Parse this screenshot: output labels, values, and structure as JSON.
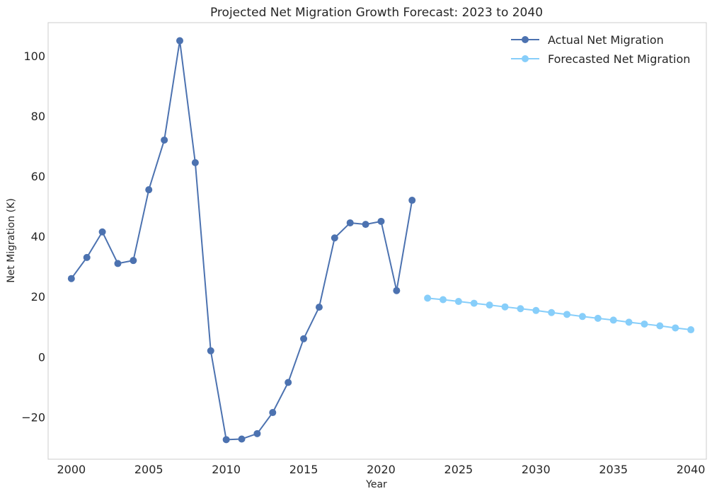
{
  "chart_data": {
    "type": "line",
    "title": "Projected Net Migration Growth Forecast: 2023 to 2040",
    "xlabel": "Year",
    "ylabel": "Net Migration (K)",
    "xlim": [
      1998.5,
      2041.0
    ],
    "ylim": [
      -34,
      111
    ],
    "xticks": [
      2000,
      2005,
      2010,
      2015,
      2020,
      2025,
      2030,
      2035,
      2040
    ],
    "yticks": [
      -20,
      0,
      20,
      40,
      60,
      80,
      100
    ],
    "ytick_labels": [
      "−20",
      "0",
      "20",
      "40",
      "60",
      "80",
      "100"
    ],
    "grid": false,
    "legend_position": "top-right",
    "series": [
      {
        "name": "Actual Net Migration",
        "color": "#4c72b0",
        "x": [
          2000,
          2001,
          2002,
          2003,
          2004,
          2005,
          2006,
          2007,
          2008,
          2009,
          2010,
          2011,
          2012,
          2013,
          2014,
          2015,
          2016,
          2017,
          2018,
          2019,
          2020,
          2021,
          2022
        ],
        "values": [
          26,
          33,
          41.5,
          31,
          32,
          55.5,
          72,
          105,
          64.5,
          2,
          -27.5,
          -27.3,
          -25.5,
          -18.5,
          -8.5,
          6,
          16.5,
          39.5,
          44.5,
          44,
          45,
          22,
          52
        ]
      },
      {
        "name": "Forecasted Net Migration",
        "color": "#87cefa",
        "x": [
          2023,
          2024,
          2025,
          2026,
          2027,
          2028,
          2029,
          2030,
          2031,
          2032,
          2033,
          2034,
          2035,
          2036,
          2037,
          2038,
          2039,
          2040
        ],
        "values": [
          19.5,
          19,
          18.4,
          17.8,
          17.2,
          16.6,
          16,
          15.4,
          14.7,
          14.1,
          13.4,
          12.8,
          12.2,
          11.5,
          10.9,
          10.3,
          9.6,
          9
        ]
      }
    ]
  }
}
